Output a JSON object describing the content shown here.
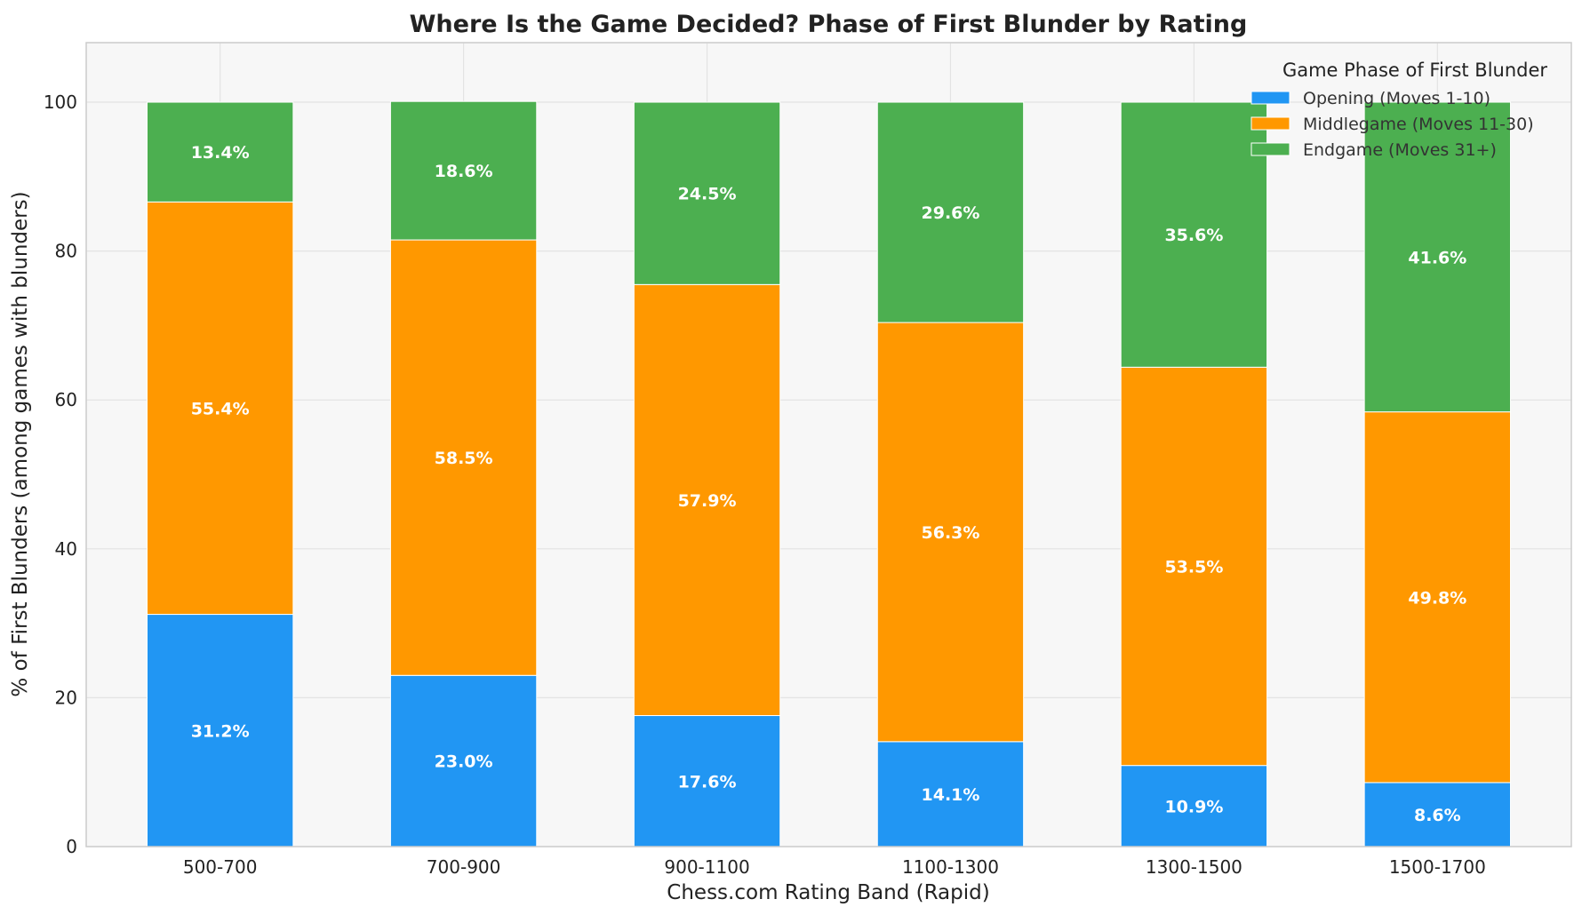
{
  "chart_data": {
    "type": "bar",
    "stacked": true,
    "title": "Where Is the Game Decided? Phase of First Blunder by Rating",
    "xlabel": "Chess.com Rating Band (Rapid)",
    "ylabel": "% of First Blunders (among games with blunders)",
    "categories": [
      "500-700",
      "700-900",
      "900-1100",
      "1100-1300",
      "1300-1500",
      "1500-1700"
    ],
    "ylim": [
      0,
      108
    ],
    "yticks": [
      0,
      20,
      40,
      60,
      80,
      100
    ],
    "grid": true,
    "series": [
      {
        "name": "Opening (Moves 1-10)",
        "color": "#2196F3",
        "values": [
          31.2,
          23.0,
          17.6,
          14.1,
          10.9,
          8.6
        ]
      },
      {
        "name": "Middlegame (Moves 11-30)",
        "color": "#FF9800",
        "values": [
          55.4,
          58.5,
          57.9,
          56.3,
          53.5,
          49.8
        ]
      },
      {
        "name": "Endgame (Moves 31+)",
        "color": "#4CAF50",
        "values": [
          13.4,
          18.6,
          24.5,
          29.6,
          35.6,
          41.6
        ]
      }
    ],
    "data_labels": [
      [
        "31.2%",
        "23.0%",
        "17.6%",
        "14.1%",
        "10.9%",
        "8.6%"
      ],
      [
        "55.4%",
        "58.5%",
        "57.9%",
        "56.3%",
        "53.5%",
        "49.8%"
      ],
      [
        "13.4%",
        "18.6%",
        "24.5%",
        "29.6%",
        "35.6%",
        "41.6%"
      ]
    ],
    "legend": {
      "title": "Game Phase of First Blunder",
      "position": "top-right"
    }
  }
}
